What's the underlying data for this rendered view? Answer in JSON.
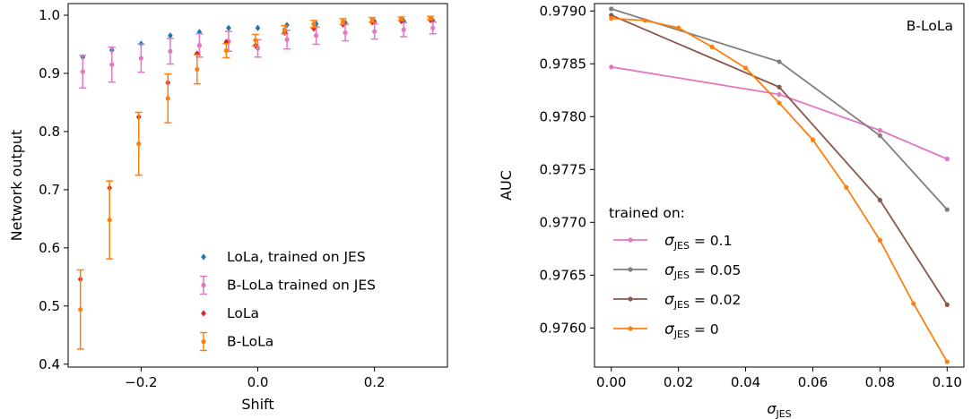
{
  "chart_data": [
    {
      "type": "scatter",
      "xlabel": "Shift",
      "ylabel": "Network output",
      "xlim": [
        -0.325,
        0.325
      ],
      "ylim": [
        0.395,
        1.02
      ],
      "xticks": [
        -0.2,
        0.0,
        0.2
      ],
      "xtick_labels": [
        "−0.2",
        "0.0",
        "0.2"
      ],
      "yticks": [
        0.4,
        0.5,
        0.6,
        0.7,
        0.8,
        0.9,
        1.0
      ],
      "ytick_labels": [
        "0.4",
        "0.5",
        "0.6",
        "0.7",
        "0.8",
        "0.9",
        "1.0"
      ],
      "legend_position": "lower-right",
      "grid": false,
      "series": [
        {
          "name": "LoLa, trained on JES",
          "color": "#1f77b4",
          "marker": "diamond",
          "offset": 0.0,
          "x": [
            -0.3,
            -0.25,
            -0.2,
            -0.15,
            -0.1,
            -0.05,
            0.0,
            0.05,
            0.1,
            0.15,
            0.2,
            0.25,
            0.3
          ],
          "y": [
            0.928,
            0.94,
            0.951,
            0.965,
            0.971,
            0.978,
            0.978,
            0.983,
            0.985,
            0.987,
            0.989,
            0.99,
            0.991
          ]
        },
        {
          "name": "B-LoLa trained on JES",
          "color": "#e377c2",
          "marker": "dot-errorbar",
          "offset": 0.0,
          "x": [
            -0.3,
            -0.25,
            -0.2,
            -0.15,
            -0.1,
            -0.05,
            0.0,
            0.05,
            0.1,
            0.15,
            0.2,
            0.25,
            0.3
          ],
          "y": [
            0.903,
            0.915,
            0.926,
            0.938,
            0.948,
            0.955,
            0.943,
            0.958,
            0.965,
            0.97,
            0.972,
            0.975,
            0.978
          ],
          "err": [
            0.028,
            0.03,
            0.024,
            0.022,
            0.02,
            0.017,
            0.015,
            0.016,
            0.015,
            0.014,
            0.013,
            0.012,
            0.01
          ]
        },
        {
          "name": "LoLa",
          "color": "#d62728",
          "marker": "diamond",
          "offset": -0.004,
          "x": [
            -0.3,
            -0.25,
            -0.2,
            -0.15,
            -0.1,
            -0.05,
            0.0,
            0.05,
            0.1,
            0.15,
            0.2,
            0.25,
            0.3
          ],
          "y": [
            0.546,
            0.703,
            0.825,
            0.884,
            0.934,
            0.954,
            0.948,
            0.97,
            0.977,
            0.984,
            0.988,
            0.99,
            0.992
          ]
        },
        {
          "name": "B-LoLa",
          "color": "#ff7f0e",
          "marker": "dot-errorbar",
          "offset": -0.004,
          "x": [
            -0.3,
            -0.25,
            -0.2,
            -0.15,
            -0.1,
            -0.05,
            0.0,
            0.05,
            0.1,
            0.15,
            0.2,
            0.25,
            0.3
          ],
          "y": [
            0.494,
            0.648,
            0.779,
            0.857,
            0.907,
            0.939,
            0.957,
            0.975,
            0.985,
            0.989,
            0.992,
            0.994,
            0.995
          ],
          "err": [
            0.068,
            0.067,
            0.054,
            0.042,
            0.025,
            0.012,
            0.01,
            0.007,
            0.006,
            0.005,
            0.004,
            0.003,
            0.003
          ]
        }
      ]
    },
    {
      "type": "line",
      "xlabel": "σ_JES",
      "ylabel": "AUC",
      "annotation": "B-LoLa",
      "xlim": [
        -0.005,
        0.105
      ],
      "ylim": [
        0.97563,
        0.97907
      ],
      "xticks": [
        0.0,
        0.02,
        0.04,
        0.06,
        0.08,
        0.1
      ],
      "xtick_labels": [
        "0.00",
        "0.02",
        "0.04",
        "0.06",
        "0.08",
        "0.10"
      ],
      "yticks": [
        0.976,
        0.9765,
        0.977,
        0.9775,
        0.978,
        0.9785,
        0.979
      ],
      "ytick_labels": [
        "0.9760",
        "0.9765",
        "0.9770",
        "0.9775",
        "0.9780",
        "0.9785",
        "0.9790"
      ],
      "legend_title": "trained on:",
      "legend_position": "lower-left",
      "grid": false,
      "series": [
        {
          "name": "σ_JES = 0.1",
          "label_value": "0.1",
          "color": "#e377c2",
          "x": [
            0.0,
            0.05,
            0.08,
            0.1
          ],
          "y": [
            0.97847,
            0.97821,
            0.97787,
            0.9776
          ]
        },
        {
          "name": "σ_JES = 0.05",
          "label_value": "0.05",
          "color": "#7f7f7f",
          "x": [
            0.0,
            0.05,
            0.08,
            0.1
          ],
          "y": [
            0.97902,
            0.97852,
            0.97782,
            0.97712
          ]
        },
        {
          "name": "σ_JES = 0.02",
          "label_value": "0.02",
          "color": "#8c564b",
          "x": [
            0.0,
            0.05,
            0.08,
            0.1
          ],
          "y": [
            0.97896,
            0.97828,
            0.97721,
            0.97622
          ]
        },
        {
          "name": "σ_JES = 0",
          "label_value": "0",
          "color": "#ff7f0e",
          "x": [
            0.0,
            0.01,
            0.02,
            0.03,
            0.04,
            0.05,
            0.06,
            0.07,
            0.08,
            0.09,
            0.1
          ],
          "y": [
            0.97893,
            0.97891,
            0.97884,
            0.97866,
            0.97846,
            0.97813,
            0.97778,
            0.97733,
            0.97683,
            0.97623,
            0.97568
          ]
        }
      ]
    }
  ]
}
